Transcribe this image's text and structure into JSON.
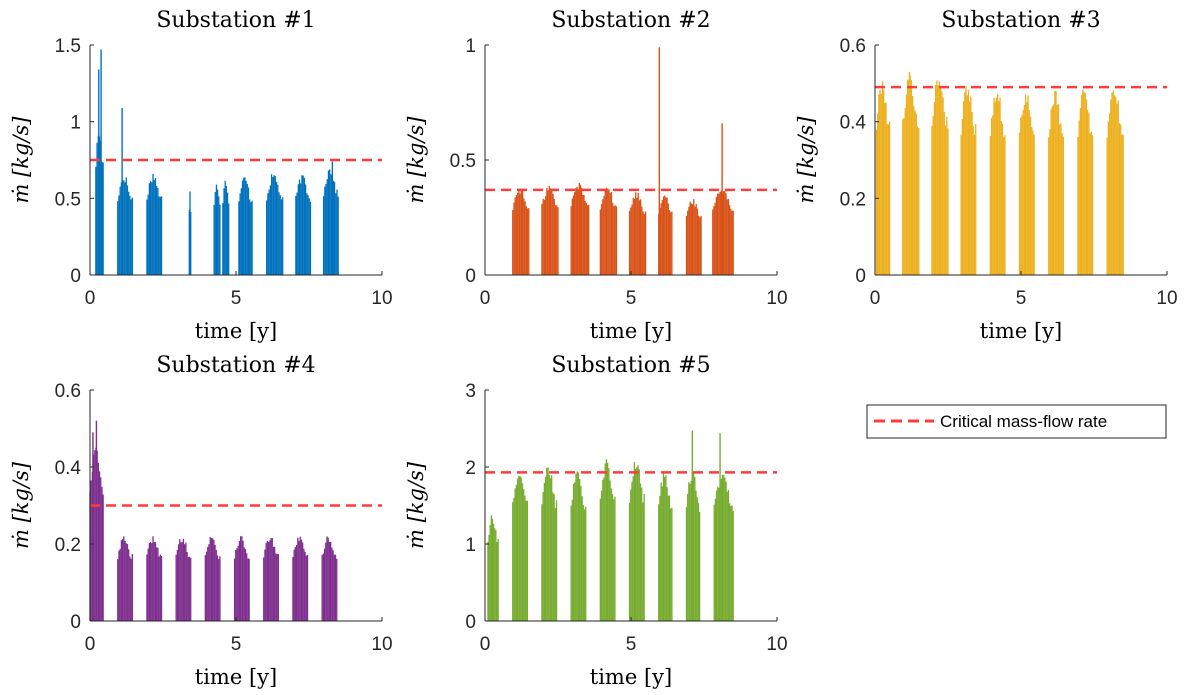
{
  "legend": {
    "entries": [
      "Critical mass-flow rate"
    ],
    "placement": "right",
    "line_color": "#ff3b3b",
    "line_style": "dashed"
  },
  "chart_data": [
    {
      "type": "bar",
      "title": "Substation #1",
      "xlabel": "time [y]",
      "ylabel": "ṁ [kg/s]",
      "xlim": [
        0,
        10
      ],
      "ylim": [
        0,
        1.5
      ],
      "xticks": [
        0,
        5,
        10
      ],
      "yticks": [
        0,
        0.5,
        1,
        1.5
      ],
      "xtick_labels": [
        "0",
        "5",
        "10"
      ],
      "ytick_labels": [
        "0",
        "0.5",
        "1",
        "1.5"
      ],
      "color": "#0072BD",
      "critical_rate": 0.75,
      "seasons": [
        {
          "x": [
            0.2,
            0.45
          ],
          "value": 0.95
        },
        {
          "x": [
            0.95,
            1.45
          ],
          "value": 0.65
        },
        {
          "x": [
            1.95,
            2.45
          ],
          "value": 0.66
        },
        {
          "x": [
            3.4,
            3.45
          ],
          "value": 0.55
        },
        {
          "x": [
            4.25,
            4.45
          ],
          "value": 0.62
        },
        {
          "x": [
            4.55,
            4.75
          ],
          "value": 0.64
        },
        {
          "x": [
            5.1,
            5.55
          ],
          "value": 0.64
        },
        {
          "x": [
            6.05,
            6.6
          ],
          "value": 0.66
        },
        {
          "x": [
            7.05,
            7.55
          ],
          "value": 0.65
        },
        {
          "x": [
            8.0,
            8.5
          ],
          "value": 0.7
        }
      ],
      "spikes": [
        {
          "x": 0.3,
          "value": 1.34
        },
        {
          "x": 0.38,
          "value": 1.47
        },
        {
          "x": 1.1,
          "value": 1.09
        },
        {
          "x": 8.3,
          "value": 0.74
        }
      ]
    },
    {
      "type": "bar",
      "title": "Substation #2",
      "xlabel": "time [y]",
      "ylabel": "ṁ [kg/s]",
      "xlim": [
        0,
        10
      ],
      "ylim": [
        0,
        1
      ],
      "xticks": [
        0,
        5,
        10
      ],
      "yticks": [
        0,
        0.5,
        1
      ],
      "xtick_labels": [
        "0",
        "5",
        "10"
      ],
      "ytick_labels": [
        "0",
        "0.5",
        "1"
      ],
      "color": "#D95319",
      "critical_rate": 0.37,
      "seasons": [
        {
          "x": [
            0.95,
            1.5
          ],
          "value": 0.38
        },
        {
          "x": [
            1.95,
            2.5
          ],
          "value": 0.39
        },
        {
          "x": [
            2.95,
            3.55
          ],
          "value": 0.4
        },
        {
          "x": [
            3.95,
            4.5
          ],
          "value": 0.39
        },
        {
          "x": [
            4.95,
            5.5
          ],
          "value": 0.36
        },
        {
          "x": [
            5.95,
            6.4
          ],
          "value": 0.36
        },
        {
          "x": [
            6.9,
            7.4
          ],
          "value": 0.33
        },
        {
          "x": [
            7.8,
            8.5
          ],
          "value": 0.38
        }
      ],
      "spikes": [
        {
          "x": 5.97,
          "value": 0.99
        },
        {
          "x": 8.12,
          "value": 0.66
        }
      ]
    },
    {
      "type": "bar",
      "title": "Substation #3",
      "xlabel": "time [y]",
      "ylabel": "ṁ [kg/s]",
      "xlim": [
        0,
        10
      ],
      "ylim": [
        0,
        0.6
      ],
      "xticks": [
        0,
        5,
        10
      ],
      "yticks": [
        0,
        0.2,
        0.4,
        0.6
      ],
      "xtick_labels": [
        "0",
        "5",
        "10"
      ],
      "ytick_labels": [
        "0",
        "0.2",
        "0.4",
        "0.6"
      ],
      "color": "#EDB120",
      "critical_rate": 0.49,
      "seasons": [
        {
          "x": [
            0.05,
            0.5
          ],
          "value": 0.51
        },
        {
          "x": [
            0.95,
            1.5
          ],
          "value": 0.52
        },
        {
          "x": [
            1.95,
            2.5
          ],
          "value": 0.52
        },
        {
          "x": [
            2.95,
            3.45
          ],
          "value": 0.5
        },
        {
          "x": [
            3.95,
            4.45
          ],
          "value": 0.49
        },
        {
          "x": [
            4.95,
            5.45
          ],
          "value": 0.48
        },
        {
          "x": [
            5.95,
            6.45
          ],
          "value": 0.48
        },
        {
          "x": [
            6.95,
            7.45
          ],
          "value": 0.49
        },
        {
          "x": [
            7.95,
            8.5
          ],
          "value": 0.49
        }
      ],
      "spikes": [
        {
          "x": 1.18,
          "value": 0.53
        }
      ]
    },
    {
      "type": "bar",
      "title": "Substation #4",
      "xlabel": "time [y]",
      "ylabel": "ṁ [kg/s]",
      "xlim": [
        0,
        10
      ],
      "ylim": [
        0,
        0.6
      ],
      "xticks": [
        0,
        5,
        10
      ],
      "yticks": [
        0,
        0.2,
        0.4,
        0.6
      ],
      "xtick_labels": [
        "0",
        "5",
        "10"
      ],
      "ytick_labels": [
        "0",
        "0.2",
        "0.4",
        "0.6"
      ],
      "color": "#7E2F8E",
      "critical_rate": 0.3,
      "seasons": [
        {
          "x": [
            0.0,
            0.45
          ],
          "value": 0.45
        },
        {
          "x": [
            0.95,
            1.45
          ],
          "value": 0.22
        },
        {
          "x": [
            1.95,
            2.45
          ],
          "value": 0.22
        },
        {
          "x": [
            2.95,
            3.45
          ],
          "value": 0.22
        },
        {
          "x": [
            3.95,
            4.45
          ],
          "value": 0.22
        },
        {
          "x": [
            4.95,
            5.45
          ],
          "value": 0.22
        },
        {
          "x": [
            5.95,
            6.45
          ],
          "value": 0.22
        },
        {
          "x": [
            6.95,
            7.45
          ],
          "value": 0.22
        },
        {
          "x": [
            7.95,
            8.45
          ],
          "value": 0.22
        }
      ],
      "spikes": [
        {
          "x": 0.1,
          "value": 0.49
        },
        {
          "x": 0.22,
          "value": 0.52
        }
      ]
    },
    {
      "type": "bar",
      "title": "Substation #5",
      "xlabel": "time [y]",
      "ylabel": "ṁ [kg/s]",
      "xlim": [
        0,
        10
      ],
      "ylim": [
        0,
        3
      ],
      "xticks": [
        0,
        5,
        10
      ],
      "yticks": [
        0,
        1,
        2,
        3
      ],
      "xtick_labels": [
        "0",
        "5",
        "10"
      ],
      "ytick_labels": [
        "0",
        "1",
        "2",
        "3"
      ],
      "color": "#77AC30",
      "critical_rate": 1.93,
      "seasons": [
        {
          "x": [
            0.1,
            0.45
          ],
          "value": 1.38
        },
        {
          "x": [
            0.95,
            1.45
          ],
          "value": 1.98
        },
        {
          "x": [
            1.95,
            2.45
          ],
          "value": 2.02
        },
        {
          "x": [
            2.95,
            3.45
          ],
          "value": 1.99
        },
        {
          "x": [
            3.95,
            4.45
          ],
          "value": 2.1
        },
        {
          "x": [
            4.95,
            5.45
          ],
          "value": 2.1
        },
        {
          "x": [
            5.95,
            6.4
          ],
          "value": 1.95
        },
        {
          "x": [
            6.9,
            7.35
          ],
          "value": 1.95
        },
        {
          "x": [
            7.85,
            8.5
          ],
          "value": 1.95
        }
      ],
      "spikes": [
        {
          "x": 7.1,
          "value": 2.47
        },
        {
          "x": 8.05,
          "value": 2.44
        }
      ]
    }
  ]
}
